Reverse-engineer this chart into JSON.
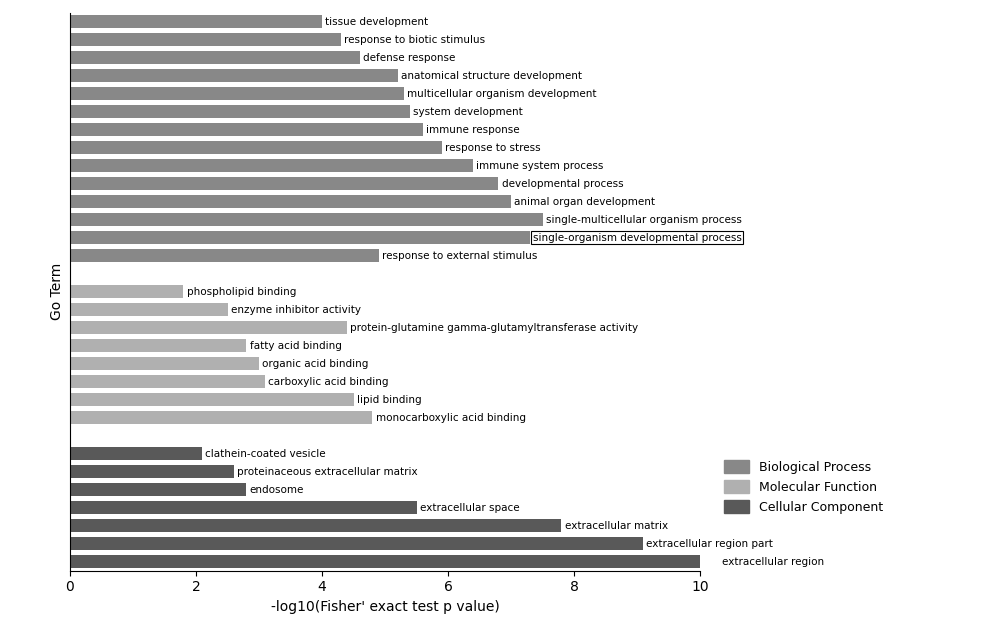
{
  "categories_bottom_to_top": [
    "extracellular region",
    "extracellular region part",
    "extracellular matrix",
    "extracellular space",
    "endosome",
    "proteinaceous extracellular matrix",
    "clathein-coated vesicle",
    "",
    "monocarboxylic acid binding",
    "lipid binding",
    "carboxylic acid binding",
    "organic acid binding",
    "fatty acid binding",
    "protein-glutamine gamma-glutamyltransferase activity",
    "enzyme inhibitor activity",
    "phospholipid binding",
    "",
    "response to external stimulus",
    "single-organism developmental process",
    "single-multicellular organism process",
    "animal organ development",
    "developmental process",
    "immune system process",
    "response to stress",
    "immune response",
    "system development",
    "multicellular organism development",
    "anatomical structure development",
    "defense response",
    "response to biotic stimulus",
    "tissue development"
  ],
  "values_bottom_to_top": [
    10.3,
    9.1,
    7.8,
    5.5,
    2.8,
    2.6,
    2.1,
    0,
    4.8,
    4.5,
    3.1,
    3.0,
    2.8,
    4.4,
    2.5,
    1.8,
    0,
    4.9,
    7.3,
    7.5,
    7.0,
    6.8,
    6.4,
    5.9,
    5.6,
    5.4,
    5.3,
    5.2,
    4.6,
    4.3,
    4.0
  ],
  "colors_bottom_to_top": [
    "#595959",
    "#595959",
    "#595959",
    "#595959",
    "#595959",
    "#595959",
    "#595959",
    "#ffffff",
    "#b0b0b0",
    "#b0b0b0",
    "#b0b0b0",
    "#b0b0b0",
    "#b0b0b0",
    "#b0b0b0",
    "#b0b0b0",
    "#b0b0b0",
    "#ffffff",
    "#888888",
    "#888888",
    "#888888",
    "#888888",
    "#888888",
    "#888888",
    "#888888",
    "#888888",
    "#888888",
    "#888888",
    "#888888",
    "#888888",
    "#888888",
    "#888888"
  ],
  "boxed_label": "single-organism developmental process",
  "xlabel": "-log10(Fisher' exact test p value)",
  "ylabel": "Go Term",
  "xlim": [
    0,
    10
  ],
  "xticks": [
    0,
    2,
    4,
    6,
    8,
    10
  ],
  "legend_labels": [
    "Biological Process",
    "Molecular Function",
    "Cellular Component"
  ],
  "legend_colors": [
    "#888888",
    "#b0b0b0",
    "#595959"
  ],
  "bar_height": 0.75,
  "figsize": [
    10.0,
    6.34
  ],
  "dpi": 100,
  "label_fontsize": 7.5,
  "axis_fontsize": 10
}
